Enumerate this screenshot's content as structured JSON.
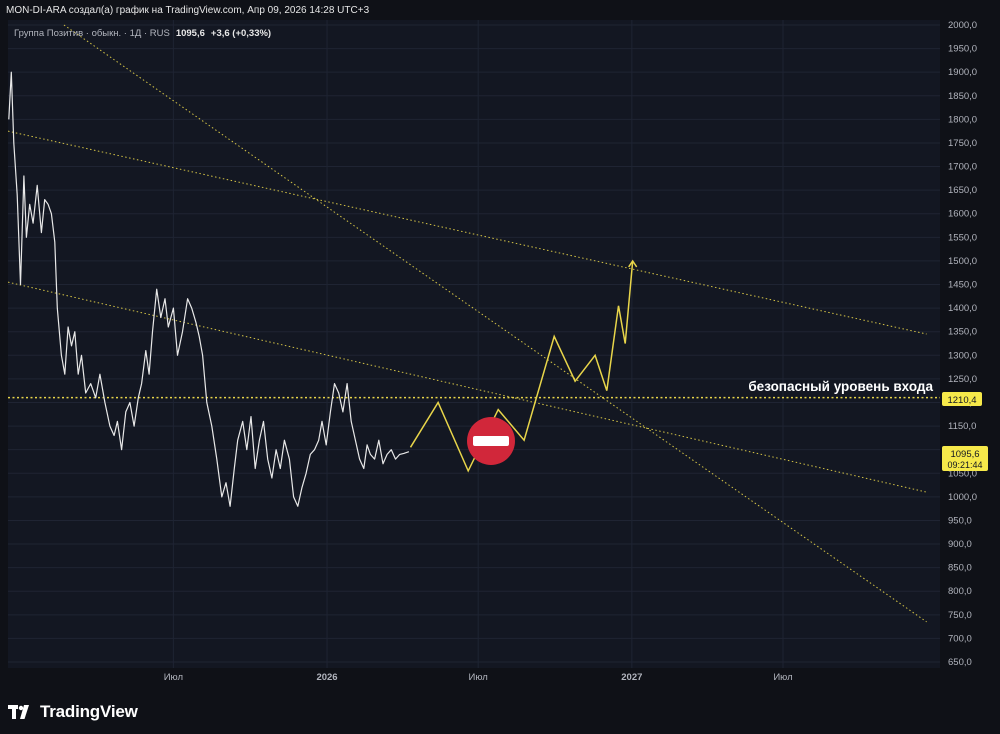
{
  "header": {
    "title": "MON-DI-ARA создал(а) график на TradingView.com, Апр 09, 2026 14:28 UTC+3"
  },
  "legend": {
    "symbol": "Группа Позитив · обыкн. · 1Д · RUS",
    "price": "1095,6",
    "change": "+3,6 (+0,33%)"
  },
  "colors": {
    "background": "#131722",
    "price_line": "#e8e8e8",
    "projection": "#e8d54a",
    "level_label_bg": "#f6e94a",
    "axis_text": "#b2b5be",
    "stop_sign": "#d1273a"
  },
  "annotation": {
    "entry_level_text": "безопасный уровень входа",
    "entry_level_value": "1210,4",
    "current_price_value": "1095,6",
    "current_price_timer": "09:21:44"
  },
  "icons": {
    "stop": "no-entry-sign-icon",
    "logo": "tradingview-logo-icon"
  },
  "footer": {
    "brand": "TradingView"
  },
  "chart_data": {
    "type": "line",
    "title": "",
    "xlabel": "",
    "ylabel": "",
    "ylim": [
      650,
      2000
    ],
    "y_ticks": [
      "2000,0",
      "1950,0",
      "1900,0",
      "1850,0",
      "1800,0",
      "1750,0",
      "1700,0",
      "1650,0",
      "1600,0",
      "1550,0",
      "1500,0",
      "1450,0",
      "1400,0",
      "1350,0",
      "1300,0",
      "1250,0",
      "1200,0",
      "1150,0",
      "1100,0",
      "1050,0",
      "1000,0",
      "950,0",
      "900,0",
      "850,0",
      "800,0",
      "750,0",
      "700,0",
      "650,0"
    ],
    "x_ticks": [
      {
        "label": "Июл",
        "date": "2025-07-01"
      },
      {
        "label": "2026",
        "date": "2026-01-01"
      },
      {
        "label": "Июл",
        "date": "2026-07-01"
      },
      {
        "label": "2027",
        "date": "2027-01-01"
      },
      {
        "label": "Июл",
        "date": "2027-07-01"
      }
    ],
    "x_range": [
      "2024-12-15",
      "2028-01-05"
    ],
    "grid": true,
    "price_series": {
      "x": [
        "2024-12-16",
        "2024-12-19",
        "2024-12-22",
        "2024-12-26",
        "2024-12-30",
        "2025-01-03",
        "2025-01-06",
        "2025-01-10",
        "2025-01-14",
        "2025-01-19",
        "2025-01-24",
        "2025-01-28",
        "2025-02-01",
        "2025-02-05",
        "2025-02-09",
        "2025-02-12",
        "2025-02-17",
        "2025-02-21",
        "2025-02-25",
        "2025-03-01",
        "2025-03-05",
        "2025-03-09",
        "2025-03-13",
        "2025-03-18",
        "2025-03-24",
        "2025-03-30",
        "2025-04-04",
        "2025-04-10",
        "2025-04-16",
        "2025-04-21",
        "2025-04-25",
        "2025-04-30",
        "2025-05-05",
        "2025-05-10",
        "2025-05-15",
        "2025-05-20",
        "2025-05-24",
        "2025-05-29",
        "2025-06-02",
        "2025-06-06",
        "2025-06-11",
        "2025-06-16",
        "2025-06-21",
        "2025-06-25",
        "2025-07-01",
        "2025-07-06",
        "2025-07-12",
        "2025-07-18",
        "2025-07-23",
        "2025-07-28",
        "2025-08-01",
        "2025-08-05",
        "2025-08-10",
        "2025-08-16",
        "2025-08-22",
        "2025-08-28",
        "2025-09-02",
        "2025-09-07",
        "2025-09-12",
        "2025-09-16",
        "2025-09-22",
        "2025-09-27",
        "2025-10-02",
        "2025-10-07",
        "2025-10-12",
        "2025-10-17",
        "2025-10-22",
        "2025-10-27",
        "2025-11-01",
        "2025-11-06",
        "2025-11-11",
        "2025-11-17",
        "2025-11-22",
        "2025-11-27",
        "2025-12-02",
        "2025-12-07",
        "2025-12-12",
        "2025-12-17",
        "2025-12-22",
        "2025-12-26",
        "2025-12-31",
        "2026-01-05",
        "2026-01-10",
        "2026-01-15",
        "2026-01-20",
        "2026-01-25",
        "2026-01-30",
        "2026-02-04",
        "2026-02-09",
        "2026-02-14",
        "2026-02-18",
        "2026-02-22",
        "2026-02-27",
        "2026-03-04",
        "2026-03-09",
        "2026-03-14",
        "2026-03-19",
        "2026-03-24",
        "2026-03-29",
        "2026-04-03",
        "2026-04-09"
      ],
      "y": [
        1800,
        1900,
        1750,
        1640,
        1450,
        1680,
        1550,
        1620,
        1580,
        1660,
        1560,
        1630,
        1620,
        1600,
        1540,
        1400,
        1300,
        1260,
        1360,
        1320,
        1350,
        1260,
        1300,
        1220,
        1240,
        1210,
        1260,
        1200,
        1150,
        1130,
        1160,
        1100,
        1180,
        1200,
        1150,
        1210,
        1240,
        1310,
        1260,
        1350,
        1440,
        1380,
        1420,
        1360,
        1400,
        1300,
        1350,
        1420,
        1400,
        1370,
        1340,
        1300,
        1200,
        1150,
        1080,
        1000,
        1030,
        980,
        1060,
        1120,
        1160,
        1100,
        1170,
        1060,
        1120,
        1160,
        1080,
        1040,
        1100,
        1060,
        1120,
        1080,
        1000,
        980,
        1020,
        1050,
        1090,
        1100,
        1120,
        1160,
        1110,
        1180,
        1240,
        1220,
        1180,
        1240,
        1160,
        1120,
        1080,
        1060,
        1110,
        1090,
        1080,
        1120,
        1070,
        1090,
        1100,
        1080,
        1090,
        1092,
        1095.6
      ]
    },
    "projection_series": {
      "x": [
        "2026-04-11",
        "2026-05-14",
        "2026-06-19",
        "2026-07-25",
        "2026-08-25",
        "2026-09-30",
        "2026-10-25",
        "2026-11-18",
        "2026-12-02",
        "2026-12-16",
        "2026-12-24",
        "2027-01-02"
      ],
      "y": [
        1105,
        1200,
        1055,
        1185,
        1120,
        1340,
        1245,
        1300,
        1225,
        1405,
        1325,
        1500
      ]
    },
    "trend_lines": [
      {
        "from": {
          "x": "2024-12-15",
          "y": 1775
        },
        "to": {
          "x": "2027-12-20",
          "y": 1345
        }
      },
      {
        "from": {
          "x": "2024-12-15",
          "y": 1455
        },
        "to": {
          "x": "2027-12-20",
          "y": 1010
        }
      },
      {
        "from": {
          "x": "2025-02-20",
          "y": 2000
        },
        "to": {
          "x": "2027-12-20",
          "y": 735
        }
      }
    ],
    "horizontal_level": {
      "y": 1210.4,
      "label": "безопасный уровень входа"
    },
    "last_price": 1095.6
  }
}
